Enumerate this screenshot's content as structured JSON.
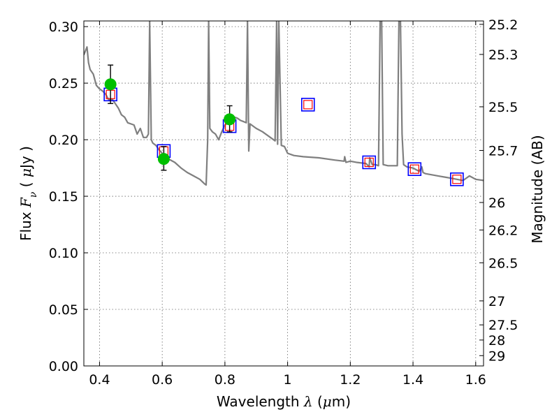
{
  "chart_data": {
    "type": "scatter",
    "title": "",
    "xlabel": {
      "prefix": "Wavelength  ",
      "symbol": "λ",
      "unit_open": " (",
      "unit_mu": "μ",
      "unit_rest": "m)"
    },
    "ylabel": {
      "prefix": "Flux  ",
      "symbol": "F",
      "sub": "ν",
      "unit_open": "  ( ",
      "unit_mu": "μ",
      "unit_rest": "Jy )"
    },
    "y2label": "Magnitude (AB)",
    "xlim": [
      0.35,
      1.625
    ],
    "ylim": [
      0.0,
      0.305
    ],
    "grid": true,
    "grid_style": "dotted",
    "x_ticks": [
      0.4,
      0.6,
      0.8,
      1.0,
      1.2,
      1.4,
      1.6
    ],
    "x_tick_labels": [
      "0.4",
      "0.6",
      "0.8",
      "1",
      "1.2",
      "1.4",
      "1.6"
    ],
    "y_ticks": [
      0.0,
      0.05,
      0.1,
      0.15,
      0.2,
      0.25,
      0.3
    ],
    "y_tick_labels": [
      "0.00",
      "0.05",
      "0.10",
      "0.15",
      "0.20",
      "0.25",
      "0.30"
    ],
    "y2_ticks": [
      {
        "label": "25.2",
        "flux": 0.302
      },
      {
        "label": "25.3",
        "flux": 0.2754
      },
      {
        "label": "25.5",
        "flux": 0.2291
      },
      {
        "label": "25.7",
        "flux": 0.1905
      },
      {
        "label": "26",
        "flux": 0.1445
      },
      {
        "label": "26.2",
        "flux": 0.1202
      },
      {
        "label": "26.5",
        "flux": 0.0912
      },
      {
        "label": "27",
        "flux": 0.0575
      },
      {
        "label": "27.5",
        "flux": 0.0363
      },
      {
        "label": "28",
        "flux": 0.0229
      },
      {
        "label": "29",
        "flux": 0.0091
      }
    ],
    "colors": {
      "model": "#7f7f7f",
      "observed": "#00bf00",
      "errorbar": "#000000",
      "model_band_box": "#0000ff",
      "model_band_inner": "#ff0000",
      "grid": "#666666"
    },
    "series": [
      {
        "kind": "model_spectrum",
        "x": [
          0.35,
          0.36,
          0.365,
          0.37,
          0.38,
          0.39,
          0.4,
          0.41,
          0.42,
          0.43,
          0.44,
          0.45,
          0.46,
          0.47,
          0.48,
          0.49,
          0.5,
          0.51,
          0.52,
          0.53,
          0.54,
          0.55,
          0.556,
          0.56,
          0.565,
          0.57,
          0.58,
          0.59,
          0.6,
          0.62,
          0.64,
          0.66,
          0.68,
          0.7,
          0.72,
          0.735,
          0.74,
          0.745,
          0.748,
          0.752,
          0.76,
          0.77,
          0.78,
          0.79,
          0.8,
          0.81,
          0.82,
          0.83,
          0.84,
          0.85,
          0.86,
          0.868,
          0.872,
          0.876,
          0.88,
          0.9,
          0.92,
          0.94,
          0.96,
          0.965,
          0.968,
          0.972,
          0.98,
          0.99,
          1.0,
          1.02,
          1.05,
          1.1,
          1.15,
          1.18,
          1.182,
          1.186,
          1.2,
          1.22,
          1.25,
          1.26,
          1.262,
          1.27,
          1.28,
          1.29,
          1.295,
          1.3,
          1.305,
          1.32,
          1.35,
          1.355,
          1.36,
          1.365,
          1.37,
          1.38,
          1.4,
          1.42,
          1.428,
          1.432,
          1.44,
          1.46,
          1.48,
          1.5,
          1.52,
          1.54,
          1.56,
          1.58,
          1.6,
          1.625
        ],
        "y": [
          0.275,
          0.282,
          0.268,
          0.262,
          0.258,
          0.248,
          0.245,
          0.243,
          0.24,
          0.235,
          0.236,
          0.232,
          0.228,
          0.222,
          0.22,
          0.215,
          0.214,
          0.213,
          0.205,
          0.21,
          0.202,
          0.202,
          0.205,
          0.305,
          0.2,
          0.197,
          0.195,
          0.191,
          0.188,
          0.183,
          0.18,
          0.175,
          0.171,
          0.168,
          0.165,
          0.161,
          0.16,
          0.2,
          0.305,
          0.21,
          0.207,
          0.205,
          0.2,
          0.207,
          0.213,
          0.215,
          0.218,
          0.22,
          0.219,
          0.217,
          0.216,
          0.215,
          0.305,
          0.19,
          0.214,
          0.21,
          0.207,
          0.203,
          0.199,
          0.305,
          0.196,
          0.305,
          0.195,
          0.194,
          0.188,
          0.186,
          0.185,
          0.184,
          0.182,
          0.181,
          0.185,
          0.18,
          0.181,
          0.18,
          0.179,
          0.176,
          0.184,
          0.178,
          0.178,
          0.177,
          0.305,
          0.305,
          0.178,
          0.177,
          0.177,
          0.305,
          0.305,
          0.205,
          0.178,
          0.176,
          0.175,
          0.172,
          0.176,
          0.171,
          0.17,
          0.169,
          0.168,
          0.167,
          0.166,
          0.165,
          0.164,
          0.168,
          0.165,
          0.164
        ]
      },
      {
        "kind": "observed",
        "x": [
          0.435,
          0.605,
          0.815
        ],
        "y": [
          0.249,
          0.183,
          0.218
        ],
        "err_low": [
          0.232,
          0.173,
          0.207
        ],
        "err_high": [
          0.266,
          0.194,
          0.23
        ]
      },
      {
        "kind": "model_bands",
        "x": [
          0.435,
          0.605,
          0.815,
          1.065,
          1.26,
          1.405,
          1.54
        ],
        "y": [
          0.24,
          0.19,
          0.212,
          0.231,
          0.18,
          0.174,
          0.165
        ]
      }
    ]
  }
}
